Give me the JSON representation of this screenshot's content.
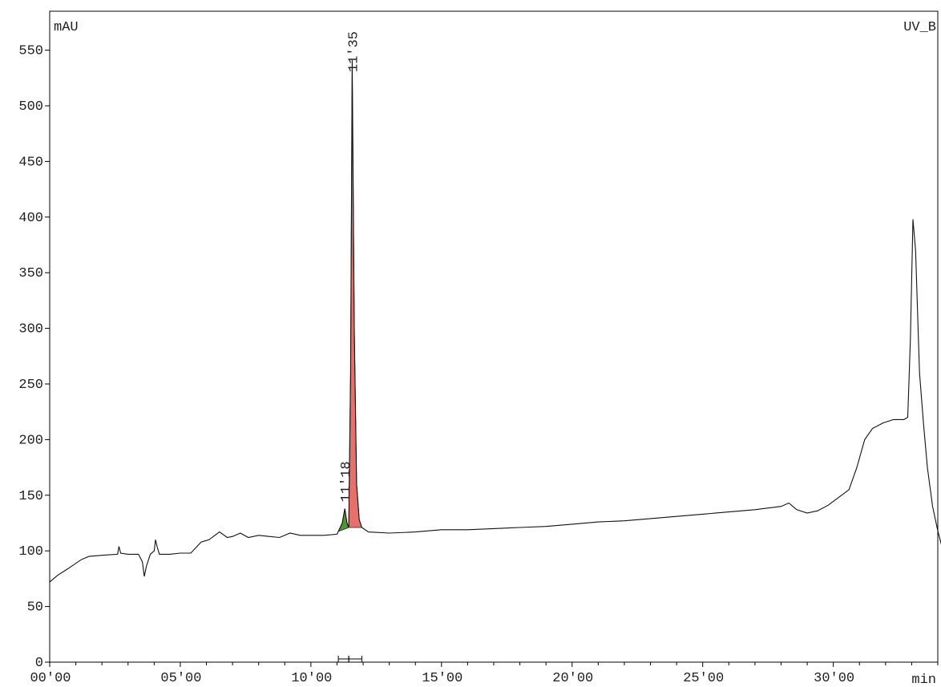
{
  "chart_data": {
    "type": "line",
    "y_unit": "mAU",
    "x_unit": "min",
    "channel": "UV_B",
    "xlim": [
      0,
      34
    ],
    "ylim": [
      0,
      585
    ],
    "grid": false,
    "y_ticks": [
      {
        "value": 0,
        "label": "0"
      },
      {
        "value": 50,
        "label": "50"
      },
      {
        "value": 100,
        "label": "100"
      },
      {
        "value": 150,
        "label": "150"
      },
      {
        "value": 200,
        "label": "200"
      },
      {
        "value": 250,
        "label": "250"
      },
      {
        "value": 300,
        "label": "300"
      },
      {
        "value": 350,
        "label": "350"
      },
      {
        "value": 400,
        "label": "400"
      },
      {
        "value": 450,
        "label": "450"
      },
      {
        "value": 500,
        "label": "500"
      },
      {
        "value": 550,
        "label": "550"
      }
    ],
    "x_ticks": [
      {
        "value": 0,
        "label": "00'00"
      },
      {
        "value": 5,
        "label": "05'00"
      },
      {
        "value": 10,
        "label": "10'00"
      },
      {
        "value": 15,
        "label": "15'00"
      },
      {
        "value": 20,
        "label": "20'00"
      },
      {
        "value": 25,
        "label": "25'00"
      },
      {
        "value": 30,
        "label": "30'00"
      }
    ],
    "x_minor_step": 1,
    "peaks": [
      {
        "label": "11'18",
        "start": 11.05,
        "apex": 11.3,
        "end": 11.45,
        "apex_value": 138,
        "color": "#4a9a30"
      },
      {
        "label": "11'35",
        "start": 11.45,
        "apex": 11.58,
        "end": 11.95,
        "apex_value": 541,
        "color": "#e8706a"
      }
    ],
    "series": [
      {
        "points": [
          [
            0,
            72
          ],
          [
            0.3,
            78
          ],
          [
            0.7,
            84
          ],
          [
            1.2,
            92
          ],
          [
            1.5,
            95
          ],
          [
            2.0,
            96
          ],
          [
            2.6,
            97
          ],
          [
            2.65,
            104
          ],
          [
            2.72,
            98
          ],
          [
            3.0,
            97
          ],
          [
            3.4,
            97
          ],
          [
            3.55,
            90
          ],
          [
            3.62,
            77
          ],
          [
            3.7,
            86
          ],
          [
            3.85,
            97
          ],
          [
            4.0,
            100
          ],
          [
            4.05,
            110
          ],
          [
            4.12,
            103
          ],
          [
            4.2,
            97
          ],
          [
            4.6,
            97
          ],
          [
            5.0,
            98
          ],
          [
            5.4,
            98
          ],
          [
            5.8,
            108
          ],
          [
            6.1,
            110
          ],
          [
            6.5,
            117
          ],
          [
            6.8,
            112
          ],
          [
            7.0,
            113
          ],
          [
            7.3,
            116
          ],
          [
            7.6,
            112
          ],
          [
            8.0,
            114
          ],
          [
            8.4,
            113
          ],
          [
            8.8,
            112
          ],
          [
            9.2,
            116
          ],
          [
            9.6,
            114
          ],
          [
            10.0,
            114
          ],
          [
            10.5,
            114
          ],
          [
            11.0,
            115
          ],
          [
            11.2,
            125
          ],
          [
            11.3,
            138
          ],
          [
            11.38,
            125
          ],
          [
            11.45,
            121
          ],
          [
            11.52,
            260
          ],
          [
            11.58,
            541
          ],
          [
            11.66,
            300
          ],
          [
            11.75,
            160
          ],
          [
            11.85,
            128
          ],
          [
            11.95,
            121
          ],
          [
            12.2,
            117
          ],
          [
            13.0,
            116
          ],
          [
            14.0,
            117
          ],
          [
            15.0,
            119
          ],
          [
            16.0,
            119
          ],
          [
            17.0,
            120
          ],
          [
            18.0,
            121
          ],
          [
            19.0,
            122
          ],
          [
            20.0,
            124
          ],
          [
            21.0,
            126
          ],
          [
            22.0,
            127
          ],
          [
            23.0,
            129
          ],
          [
            24.0,
            131
          ],
          [
            25.0,
            133
          ],
          [
            26.0,
            135
          ],
          [
            27.0,
            137
          ],
          [
            28.0,
            140
          ],
          [
            28.3,
            143
          ],
          [
            28.6,
            137
          ],
          [
            29.0,
            134
          ],
          [
            29.4,
            136
          ],
          [
            29.8,
            141
          ],
          [
            30.2,
            148
          ],
          [
            30.6,
            155
          ],
          [
            30.9,
            175
          ],
          [
            31.2,
            200
          ],
          [
            31.5,
            210
          ],
          [
            31.9,
            215
          ],
          [
            32.3,
            218
          ],
          [
            32.7,
            218
          ],
          [
            32.85,
            220
          ],
          [
            32.95,
            290
          ],
          [
            33.05,
            398
          ],
          [
            33.15,
            370
          ],
          [
            33.3,
            260
          ],
          [
            33.45,
            215
          ],
          [
            33.6,
            175
          ],
          [
            33.8,
            140
          ],
          [
            34.0,
            118
          ],
          [
            34.2,
            100
          ],
          [
            34.4,
            87
          ],
          [
            34.5,
            84
          ]
        ]
      }
    ]
  }
}
